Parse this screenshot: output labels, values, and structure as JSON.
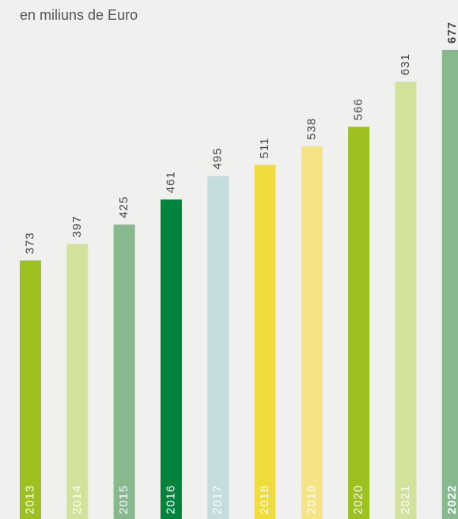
{
  "chart_data": {
    "type": "bar",
    "title": "en miliuns de Euro",
    "categories": [
      "2013",
      "2014",
      "2015",
      "2016",
      "2017",
      "2018",
      "2019",
      "2020",
      "2021",
      "2022"
    ],
    "values": [
      373,
      397,
      425,
      461,
      495,
      511,
      538,
      566,
      631,
      677
    ],
    "colors": [
      "#9dc21f",
      "#d3e29b",
      "#88b98e",
      "#00843d",
      "#c5dcdc",
      "#f0dc3c",
      "#f5e485",
      "#9dc21f",
      "#d3e29b",
      "#88b98e"
    ]
  }
}
